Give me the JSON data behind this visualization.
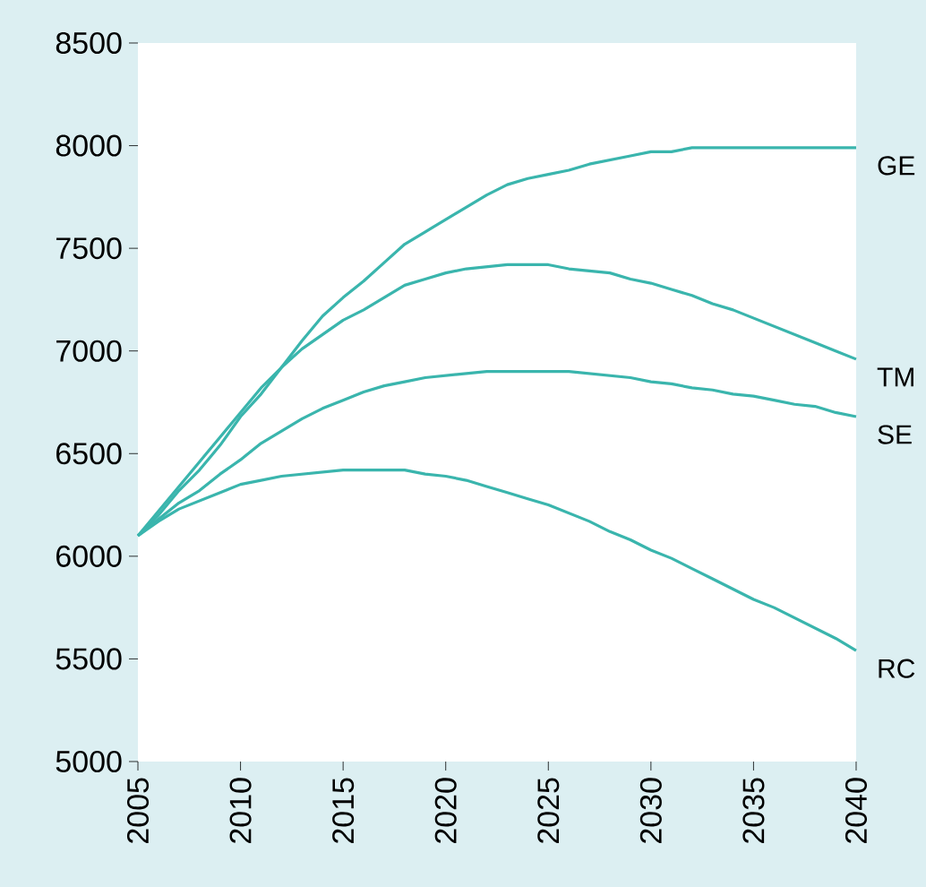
{
  "chart_data": {
    "type": "line",
    "x": [
      2005,
      2006,
      2007,
      2008,
      2009,
      2010,
      2011,
      2012,
      2013,
      2014,
      2015,
      2016,
      2017,
      2018,
      2019,
      2020,
      2021,
      2022,
      2023,
      2024,
      2025,
      2026,
      2027,
      2028,
      2029,
      2030,
      2031,
      2032,
      2033,
      2034,
      2035,
      2036,
      2037,
      2038,
      2039,
      2040
    ],
    "series": [
      {
        "name": "GE",
        "color": "#3ab5ad",
        "values": [
          6100,
          6200,
          6320,
          6420,
          6540,
          6680,
          6790,
          6920,
          7050,
          7170,
          7260,
          7340,
          7430,
          7520,
          7580,
          7640,
          7700,
          7760,
          7810,
          7840,
          7860,
          7880,
          7910,
          7930,
          7950,
          7970,
          7970,
          7990,
          7990,
          7990,
          7990,
          7990,
          7990,
          7990,
          7990,
          7990
        ]
      },
      {
        "name": "TM",
        "color": "#3ab5ad",
        "values": [
          6100,
          6220,
          6340,
          6460,
          6580,
          6700,
          6820,
          6920,
          7010,
          7080,
          7150,
          7200,
          7260,
          7320,
          7350,
          7380,
          7400,
          7410,
          7420,
          7420,
          7420,
          7400,
          7390,
          7380,
          7350,
          7330,
          7300,
          7270,
          7230,
          7200,
          7160,
          7120,
          7080,
          7040,
          7000,
          6960
        ]
      },
      {
        "name": "SE",
        "color": "#3ab5ad",
        "values": [
          6100,
          6180,
          6260,
          6320,
          6400,
          6470,
          6550,
          6610,
          6670,
          6720,
          6760,
          6800,
          6830,
          6850,
          6870,
          6880,
          6890,
          6900,
          6900,
          6900,
          6900,
          6900,
          6890,
          6880,
          6870,
          6850,
          6840,
          6820,
          6810,
          6790,
          6780,
          6760,
          6740,
          6730,
          6700,
          6680
        ]
      },
      {
        "name": "RC",
        "color": "#3ab5ad",
        "values": [
          6100,
          6170,
          6230,
          6270,
          6310,
          6350,
          6370,
          6390,
          6400,
          6410,
          6420,
          6420,
          6420,
          6420,
          6400,
          6390,
          6370,
          6340,
          6310,
          6280,
          6250,
          6210,
          6170,
          6120,
          6080,
          6030,
          5990,
          5940,
          5890,
          5840,
          5790,
          5750,
          5700,
          5650,
          5600,
          5540
        ]
      }
    ],
    "xlim": [
      2005,
      2040
    ],
    "xticks": [
      2005,
      2010,
      2015,
      2020,
      2025,
      2030,
      2035,
      2040
    ],
    "ylim": [
      5000,
      8500
    ],
    "yticks": [
      5000,
      5500,
      6000,
      6500,
      7000,
      7500,
      8000,
      8500
    ],
    "grid": false,
    "legend": false,
    "marker": "none",
    "line_style": "solid"
  }
}
